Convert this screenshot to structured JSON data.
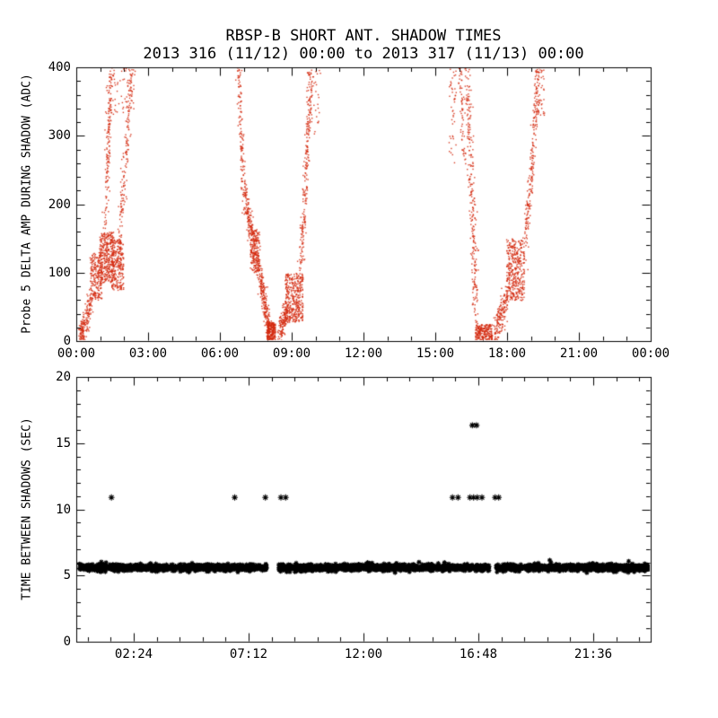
{
  "colors": {
    "background": "#ffffff",
    "axis": "#000000",
    "top_points": "#d42a10",
    "bottom_points": "#000000"
  },
  "chart_data": [
    {
      "type": "scatter",
      "panel": "top",
      "title": "RBSP-B SHORT ANT. SHADOW TIMES",
      "subtitle": "2013 316 (11/12) 00:00 to 2013 317 (11/13) 00:00",
      "ylabel": "Probe 5 DELTA AMP DURING SHADOW (ADC)",
      "xlabel": "",
      "xlim_hours": [
        0,
        24
      ],
      "ylim": [
        0,
        400
      ],
      "x_ticks": [
        {
          "hour": 0,
          "label": "00:00"
        },
        {
          "hour": 3,
          "label": "03:00"
        },
        {
          "hour": 6,
          "label": "06:00"
        },
        {
          "hour": 9,
          "label": "09:00"
        },
        {
          "hour": 12,
          "label": "12:00"
        },
        {
          "hour": 15,
          "label": "15:00"
        },
        {
          "hour": 18,
          "label": "18:00"
        },
        {
          "hour": 21,
          "label": "21:00"
        },
        {
          "hour": 24,
          "label": "00:00"
        }
      ],
      "x_minor_step": 1,
      "x_minor_anchor": 0,
      "y_ticks": [
        0,
        100,
        200,
        300,
        400
      ],
      "y_minor_step": 20,
      "marker": "dot",
      "point_color": "#d42a10",
      "grid": false,
      "legend": false,
      "clusters": [
        {
          "mode": "line",
          "t0": 0.1,
          "t1": 0.3,
          "v0": 2,
          "v1": 20,
          "n": 40,
          "jt": 0.03,
          "jv": 6
        },
        {
          "mode": "line",
          "t0": 0.15,
          "t1": 0.6,
          "v0": 5,
          "v1": 60,
          "n": 150,
          "jt": 0.05,
          "jv": 12
        },
        {
          "mode": "box",
          "t0": 0.55,
          "t1": 1.05,
          "v0": 60,
          "v1": 130,
          "n": 220
        },
        {
          "mode": "box",
          "t0": 0.95,
          "t1": 1.55,
          "v0": 85,
          "v1": 160,
          "n": 320
        },
        {
          "mode": "box",
          "t0": 1.45,
          "t1": 1.95,
          "v0": 75,
          "v1": 150,
          "n": 260
        },
        {
          "mode": "line",
          "t0": 1.15,
          "t1": 1.45,
          "v0": 150,
          "v1": 400,
          "n": 170,
          "jt": 0.05,
          "jv": 14
        },
        {
          "mode": "line",
          "t0": 1.75,
          "t1": 2.3,
          "v0": 140,
          "v1": 400,
          "n": 170,
          "jt": 0.06,
          "jv": 16
        },
        {
          "mode": "box",
          "t0": 1.2,
          "t1": 2.45,
          "v0": 330,
          "v1": 400,
          "n": 60
        },
        {
          "mode": "line",
          "t0": 6.75,
          "t1": 6.95,
          "v0": 400,
          "v1": 230,
          "n": 110,
          "jt": 0.045,
          "jv": 14
        },
        {
          "mode": "line",
          "t0": 6.95,
          "t1": 7.55,
          "v0": 230,
          "v1": 110,
          "n": 200,
          "jt": 0.05,
          "jv": 14
        },
        {
          "mode": "box",
          "t0": 7.25,
          "t1": 7.65,
          "v0": 100,
          "v1": 165,
          "n": 180
        },
        {
          "mode": "line",
          "t0": 7.6,
          "t1": 8.05,
          "v0": 110,
          "v1": 8,
          "n": 220,
          "jt": 0.045,
          "jv": 12
        },
        {
          "mode": "box",
          "t0": 7.95,
          "t1": 8.3,
          "v0": 0,
          "v1": 28,
          "n": 230
        },
        {
          "mode": "line",
          "t0": 8.45,
          "t1": 8.8,
          "v0": 12,
          "v1": 45,
          "n": 140,
          "jt": 0.05,
          "jv": 10
        },
        {
          "mode": "box",
          "t0": 8.7,
          "t1": 9.45,
          "v0": 28,
          "v1": 100,
          "n": 380
        },
        {
          "mode": "line",
          "t0": 9.35,
          "t1": 9.8,
          "v0": 95,
          "v1": 400,
          "n": 230,
          "jt": 0.05,
          "jv": 16
        },
        {
          "mode": "box",
          "t0": 9.6,
          "t1": 10.2,
          "v0": 300,
          "v1": 400,
          "n": 50
        },
        {
          "mode": "box",
          "t0": 15.55,
          "t1": 15.85,
          "v0": 260,
          "v1": 400,
          "n": 45
        },
        {
          "mode": "line",
          "t0": 16.0,
          "t1": 16.2,
          "v0": 400,
          "v1": 260,
          "n": 60,
          "jt": 0.04,
          "jv": 14
        },
        {
          "mode": "line",
          "t0": 16.3,
          "t1": 16.7,
          "v0": 400,
          "v1": 30,
          "n": 260,
          "jt": 0.07,
          "jv": 20
        },
        {
          "mode": "box",
          "t0": 16.65,
          "t1": 17.35,
          "v0": 0,
          "v1": 25,
          "n": 240
        },
        {
          "mode": "line",
          "t0": 17.45,
          "t1": 18.0,
          "v0": 8,
          "v1": 70,
          "n": 180,
          "jt": 0.05,
          "jv": 12
        },
        {
          "mode": "box",
          "t0": 17.95,
          "t1": 18.7,
          "v0": 60,
          "v1": 150,
          "n": 380
        },
        {
          "mode": "line",
          "t0": 18.75,
          "t1": 19.3,
          "v0": 140,
          "v1": 400,
          "n": 220,
          "jt": 0.05,
          "jv": 16
        },
        {
          "mode": "box",
          "t0": 19.1,
          "t1": 19.55,
          "v0": 330,
          "v1": 400,
          "n": 45
        }
      ]
    },
    {
      "type": "scatter",
      "panel": "bottom",
      "ylabel": "TIME BETWEEN SHADOWS (SEC)",
      "xlabel": "",
      "xlim_hours": [
        0,
        24
      ],
      "ylim": [
        0,
        20
      ],
      "x_ticks": [
        {
          "hour": 2.4,
          "label": "02:24"
        },
        {
          "hour": 7.2,
          "label": "07:12"
        },
        {
          "hour": 12.0,
          "label": "12:00"
        },
        {
          "hour": 16.8,
          "label": "16:48"
        },
        {
          "hour": 21.6,
          "label": "21:36"
        }
      ],
      "x_minor_step": 0.96,
      "x_minor_anchor": 2.4,
      "y_ticks": [
        0,
        5,
        10,
        15,
        20
      ],
      "y_minor_step": 1,
      "marker": "asterisk",
      "point_color": "#000000",
      "grid": false,
      "legend": false,
      "band": {
        "value": 5.6,
        "jitter": 0.12,
        "density_per_hour": 130,
        "segments": [
          [
            0.12,
            7.95
          ],
          [
            8.45,
            17.25
          ],
          [
            17.55,
            23.93
          ]
        ]
      },
      "outliers": [
        {
          "t": 1.47,
          "v": 10.9
        },
        {
          "t": 6.62,
          "v": 10.9
        },
        {
          "t": 7.9,
          "v": 10.9
        },
        {
          "t": 8.55,
          "v": 10.9
        },
        {
          "t": 8.75,
          "v": 10.9
        },
        {
          "t": 15.72,
          "v": 10.9
        },
        {
          "t": 15.95,
          "v": 10.9
        },
        {
          "t": 16.45,
          "v": 10.9
        },
        {
          "t": 16.6,
          "v": 10.9
        },
        {
          "t": 16.75,
          "v": 10.9
        },
        {
          "t": 16.95,
          "v": 10.9
        },
        {
          "t": 17.5,
          "v": 10.9
        },
        {
          "t": 17.65,
          "v": 10.9
        },
        {
          "t": 16.55,
          "v": 16.35
        },
        {
          "t": 16.72,
          "v": 16.35
        }
      ]
    }
  ]
}
